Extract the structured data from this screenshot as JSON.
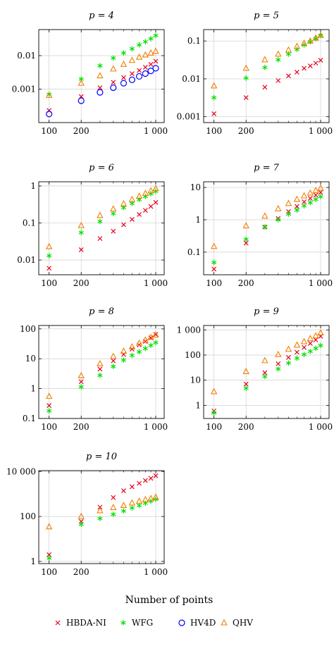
{
  "xlabel": "Number of points",
  "legend": [
    {
      "name": "HBDA-NI",
      "color": "#e8001c",
      "marker": "x"
    },
    {
      "name": "WFG",
      "color": "#00e000",
      "marker": "star"
    },
    {
      "name": "HV4D",
      "color": "#0000ff",
      "marker": "circle"
    },
    {
      "name": "QHV",
      "color": "#f08000",
      "marker": "triangle"
    }
  ],
  "chart_data": [
    {
      "type": "scatter",
      "title": "p = 4",
      "xscale": "log",
      "yscale": "log",
      "xlim": [
        80,
        1200
      ],
      "ylim": [
        0.0001,
        0.06
      ],
      "xticks": [
        {
          "v": 100,
          "label": "100"
        },
        {
          "v": 200,
          "label": "200"
        },
        {
          "v": 1000,
          "label": "1 000"
        }
      ],
      "yticks": [
        {
          "v": 0.001,
          "label": "0.001"
        },
        {
          "v": 0.01,
          "label": "0.01"
        }
      ],
      "grid": true,
      "x": [
        100,
        200,
        300,
        400,
        500,
        600,
        700,
        800,
        900,
        1000
      ],
      "series": [
        {
          "name": "HBDA-NI",
          "values": [
            0.00023,
            0.0006,
            0.0011,
            0.0016,
            0.0022,
            0.0029,
            0.0036,
            0.0045,
            0.0055,
            0.0068
          ]
        },
        {
          "name": "WFG",
          "values": [
            0.0007,
            0.002,
            0.005,
            0.0085,
            0.012,
            0.016,
            0.021,
            0.026,
            0.032,
            0.04
          ]
        },
        {
          "name": "HV4D",
          "values": [
            0.00018,
            0.00045,
            0.0008,
            0.0011,
            0.0015,
            0.0019,
            0.0024,
            0.0029,
            0.0035,
            0.0042
          ]
        },
        {
          "name": "QHV",
          "values": [
            0.00065,
            0.0015,
            0.0025,
            0.004,
            0.0055,
            0.0072,
            0.009,
            0.0105,
            0.012,
            0.0135
          ]
        }
      ]
    },
    {
      "type": "scatter",
      "title": "p = 5",
      "xscale": "log",
      "yscale": "log",
      "xlim": [
        80,
        1200
      ],
      "ylim": [
        0.0007,
        0.2
      ],
      "xticks": [
        {
          "v": 100,
          "label": "100"
        },
        {
          "v": 200,
          "label": "200"
        },
        {
          "v": 1000,
          "label": "1 000"
        }
      ],
      "yticks": [
        {
          "v": 0.001,
          "label": "0.001"
        },
        {
          "v": 0.01,
          "label": "0.01"
        },
        {
          "v": 0.1,
          "label": "0.1"
        }
      ],
      "grid": true,
      "x": [
        100,
        200,
        300,
        400,
        500,
        600,
        700,
        800,
        900,
        1000
      ],
      "series": [
        {
          "name": "HBDA-NI",
          "values": [
            0.0012,
            0.0032,
            0.006,
            0.009,
            0.012,
            0.015,
            0.019,
            0.022,
            0.026,
            0.031
          ]
        },
        {
          "name": "WFG",
          "values": [
            0.0032,
            0.0105,
            0.02,
            0.032,
            0.045,
            0.06,
            0.078,
            0.095,
            0.115,
            0.14
          ]
        },
        {
          "name": "QHV",
          "values": [
            0.0065,
            0.019,
            0.032,
            0.045,
            0.058,
            0.072,
            0.087,
            0.1,
            0.12,
            0.14
          ]
        }
      ]
    },
    {
      "type": "scatter",
      "title": "p = 6",
      "xscale": "log",
      "yscale": "log",
      "xlim": [
        80,
        1200
      ],
      "ylim": [
        0.004,
        1.3
      ],
      "xticks": [
        {
          "v": 100,
          "label": "100"
        },
        {
          "v": 200,
          "label": "200"
        },
        {
          "v": 1000,
          "label": "1 000"
        }
      ],
      "yticks": [
        {
          "v": 0.01,
          "label": "0.01"
        },
        {
          "v": 0.1,
          "label": "0.1"
        },
        {
          "v": 1,
          "label": "1"
        }
      ],
      "grid": true,
      "x": [
        100,
        200,
        300,
        400,
        500,
        600,
        700,
        800,
        900,
        1000
      ],
      "series": [
        {
          "name": "HBDA-NI",
          "values": [
            0.006,
            0.019,
            0.038,
            0.06,
            0.09,
            0.125,
            0.17,
            0.22,
            0.28,
            0.36
          ]
        },
        {
          "name": "WFG",
          "values": [
            0.013,
            0.055,
            0.11,
            0.18,
            0.26,
            0.34,
            0.43,
            0.52,
            0.62,
            0.72
          ]
        },
        {
          "name": "QHV",
          "values": [
            0.023,
            0.085,
            0.16,
            0.24,
            0.33,
            0.43,
            0.53,
            0.63,
            0.74,
            0.85
          ]
        }
      ]
    },
    {
      "type": "scatter",
      "title": "p = 7",
      "xscale": "log",
      "yscale": "log",
      "xlim": [
        80,
        1200
      ],
      "ylim": [
        0.02,
        15
      ],
      "xticks": [
        {
          "v": 100,
          "label": "100"
        },
        {
          "v": 200,
          "label": "200"
        },
        {
          "v": 1000,
          "label": "1 000"
        }
      ],
      "yticks": [
        {
          "v": 0.1,
          "label": "0.1"
        },
        {
          "v": 1,
          "label": "1"
        },
        {
          "v": 10,
          "label": "10"
        }
      ],
      "grid": true,
      "x": [
        100,
        200,
        300,
        400,
        500,
        600,
        700,
        800,
        900,
        1000
      ],
      "series": [
        {
          "name": "HBDA-NI",
          "values": [
            0.03,
            0.19,
            0.6,
            1.1,
            1.8,
            2.6,
            3.6,
            4.6,
            5.8,
            7.0
          ]
        },
        {
          "name": "WFG",
          "values": [
            0.048,
            0.25,
            0.6,
            1.0,
            1.5,
            2.0,
            2.7,
            3.4,
            4.3,
            5.2
          ]
        },
        {
          "name": "QHV",
          "values": [
            0.15,
            0.65,
            1.3,
            2.2,
            3.2,
            4.3,
            5.5,
            6.7,
            8.0,
            9.5
          ]
        }
      ]
    },
    {
      "type": "scatter",
      "title": "p = 8",
      "xscale": "log",
      "yscale": "log",
      "xlim": [
        80,
        1200
      ],
      "ylim": [
        0.1,
        130
      ],
      "xticks": [
        {
          "v": 100,
          "label": "100"
        },
        {
          "v": 200,
          "label": "200"
        },
        {
          "v": 1000,
          "label": "1 000"
        }
      ],
      "yticks": [
        {
          "v": 0.1,
          "label": "0.1"
        },
        {
          "v": 1,
          "label": "1"
        },
        {
          "v": 10,
          "label": "10"
        },
        {
          "v": 100,
          "label": "100"
        }
      ],
      "grid": true,
      "x": [
        100,
        200,
        300,
        400,
        500,
        600,
        700,
        800,
        900,
        1000
      ],
      "series": [
        {
          "name": "HBDA-NI",
          "values": [
            0.27,
            1.7,
            4.5,
            8.5,
            14,
            21,
            29,
            38,
            50,
            65
          ]
        },
        {
          "name": "WFG",
          "values": [
            0.18,
            1.15,
            2.8,
            5.5,
            9,
            13,
            17,
            22,
            28,
            35
          ]
        },
        {
          "name": "QHV",
          "values": [
            0.55,
            2.7,
            6.8,
            12,
            18,
            25,
            33,
            42,
            52,
            62
          ]
        }
      ]
    },
    {
      "type": "scatter",
      "title": "p = 9",
      "xscale": "log",
      "yscale": "log",
      "xlim": [
        80,
        1200
      ],
      "ylim": [
        0.3,
        1500
      ],
      "xticks": [
        {
          "v": 100,
          "label": "100"
        },
        {
          "v": 200,
          "label": "200"
        },
        {
          "v": 1000,
          "label": "1 000"
        }
      ],
      "yticks": [
        {
          "v": 1,
          "label": "1"
        },
        {
          "v": 10,
          "label": "10"
        },
        {
          "v": 100,
          "label": "100"
        },
        {
          "v": 1000,
          "label": "1 000"
        }
      ],
      "grid": true,
      "x": [
        100,
        200,
        300,
        400,
        500,
        600,
        700,
        800,
        900,
        1000
      ],
      "series": [
        {
          "name": "HBDA-NI",
          "values": [
            0.6,
            7,
            20,
            45,
            80,
            130,
            200,
            290,
            400,
            560
          ]
        },
        {
          "name": "WFG",
          "values": [
            0.5,
            4.8,
            14,
            28,
            48,
            75,
            105,
            140,
            185,
            240
          ]
        },
        {
          "name": "QHV",
          "values": [
            3.5,
            22,
            60,
            105,
            170,
            250,
            340,
            450,
            580,
            760
          ]
        }
      ]
    },
    {
      "type": "scatter",
      "title": "p = 10",
      "xscale": "log",
      "yscale": "log",
      "xlim": [
        80,
        1200
      ],
      "ylim": [
        0.8,
        11000
      ],
      "xticks": [
        {
          "v": 100,
          "label": "100"
        },
        {
          "v": 200,
          "label": "200"
        },
        {
          "v": 1000,
          "label": "1 000"
        }
      ],
      "yticks": [
        {
          "v": 1,
          "label": "1"
        },
        {
          "v": 100,
          "label": "100"
        },
        {
          "v": 10000,
          "label": "10 000"
        }
      ],
      "grid": true,
      "x": [
        100,
        200,
        300,
        400,
        500,
        600,
        700,
        800,
        900,
        1000
      ],
      "series": [
        {
          "name": "HBDA-NI",
          "values": [
            2,
            60,
            260,
            700,
            1400,
            2100,
            3000,
            4000,
            5000,
            6500
          ]
        },
        {
          "name": "WFG",
          "values": [
            1.4,
            45,
            82,
            125,
            175,
            240,
            310,
            390,
            480,
            580
          ]
        },
        {
          "name": "QHV",
          "values": [
            35,
            100,
            180,
            250,
            310,
            400,
            480,
            560,
            630,
            720
          ]
        }
      ]
    }
  ]
}
